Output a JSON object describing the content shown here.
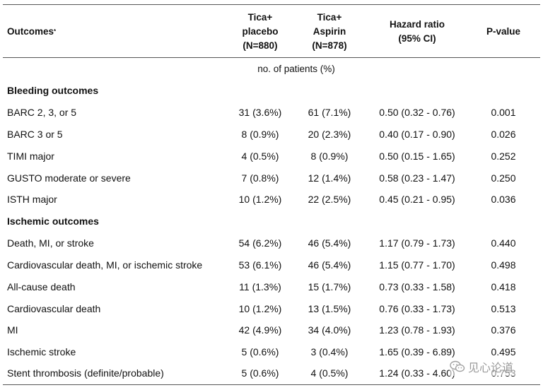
{
  "header": {
    "outcomes": "Outcomes",
    "outcomes_mark": "*",
    "col1_line1": "Tica+",
    "col1_line2": "placebo",
    "col1_line3": "(N=880)",
    "col2_line1": "Tica+",
    "col2_line2": "Aspirin",
    "col2_line3": "(N=878)",
    "col3_line1": "Hazard ratio",
    "col3_line2": "(95% CI)",
    "col4": "P-value"
  },
  "units": "no. of patients (%)",
  "sections": [
    {
      "title": "Bleeding outcomes",
      "rows": [
        {
          "outcome": "BARC 2, 3, or 5",
          "placebo": "31 (3.6%)",
          "aspirin": "61 (7.1%)",
          "hr": "0.50 (0.32 - 0.76)",
          "p": "0.001"
        },
        {
          "outcome": "BARC 3 or 5",
          "placebo": "8 (0.9%)",
          "aspirin": "20 (2.3%)",
          "hr": "0.40 (0.17 - 0.90)",
          "p": "0.026"
        },
        {
          "outcome": "TIMI major",
          "placebo": "4 (0.5%)",
          "aspirin": "8 (0.9%)",
          "hr": "0.50 (0.15 - 1.65)",
          "p": "0.252"
        },
        {
          "outcome": "GUSTO moderate or severe",
          "placebo": "7 (0.8%)",
          "aspirin": "12 (1.4%)",
          "hr": "0.58 (0.23 - 1.47)",
          "p": "0.250"
        },
        {
          "outcome": "ISTH major",
          "placebo": "10 (1.2%)",
          "aspirin": "22 (2.5%)",
          "hr": "0.45 (0.21 - 0.95)",
          "p": "0.036"
        }
      ]
    },
    {
      "title": "Ischemic outcomes",
      "rows": [
        {
          "outcome": "Death, MI, or stroke",
          "placebo": "54 (6.2%)",
          "aspirin": "46 (5.4%)",
          "hr": "1.17 (0.79 - 1.73)",
          "p": "0.440"
        },
        {
          "outcome": "Cardiovascular death, MI, or ischemic stroke",
          "placebo": "53 (6.1%)",
          "aspirin": "46 (5.4%)",
          "hr": "1.15 (0.77 - 1.70)",
          "p": "0.498"
        },
        {
          "outcome": "All-cause death",
          "placebo": "11 (1.3%)",
          "aspirin": "15 (1.7%)",
          "hr": "0.73 (0.33 - 1.58)",
          "p": "0.418"
        },
        {
          "outcome": "Cardiovascular death",
          "placebo": "10 (1.2%)",
          "aspirin": "13 (1.5%)",
          "hr": "0.76 (0.33 - 1.73)",
          "p": "0.513"
        },
        {
          "outcome": "MI",
          "placebo": "42 (4.9%)",
          "aspirin": "34 (4.0%)",
          "hr": "1.23 (0.78 - 1.93)",
          "p": "0.376"
        },
        {
          "outcome": "Ischemic stroke",
          "placebo": "5 (0.6%)",
          "aspirin": "3 (0.4%)",
          "hr": "1.65 (0.39 - 6.89)",
          "p": "0.495"
        },
        {
          "outcome": "Stent thrombosis (definite/probable)",
          "placebo": "5 (0.6%)",
          "aspirin": "4 (0.5%)",
          "hr": "1.24 (0.33 - 4.60)",
          "p": "0.753"
        }
      ]
    }
  ],
  "watermark": "见心论道"
}
